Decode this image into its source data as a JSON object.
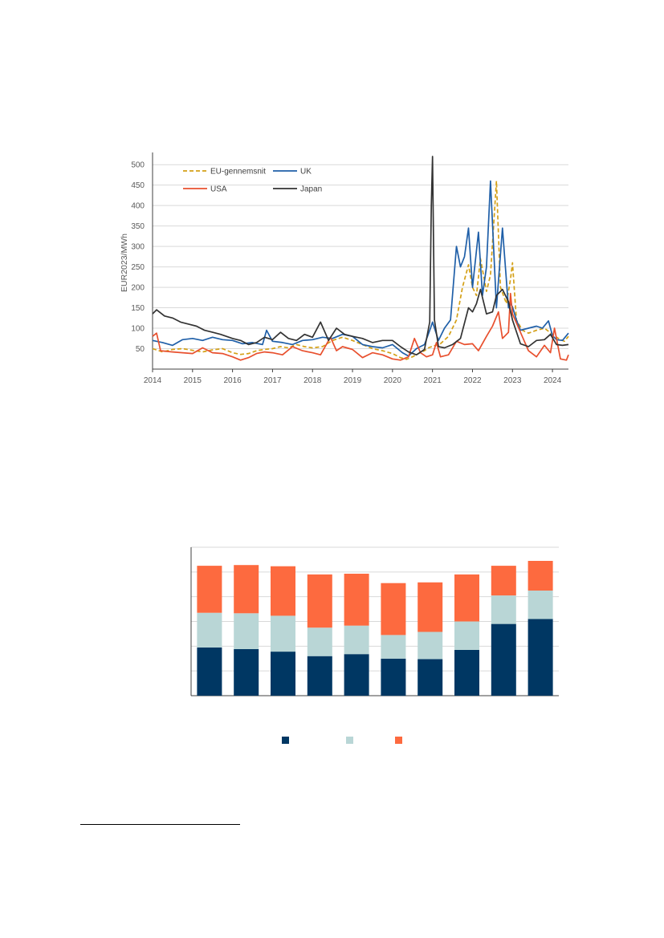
{
  "chart_data": [
    {
      "type": "line",
      "ylabel": "EUR2023/MWh",
      "xlabel": "",
      "title": "",
      "xlim": [
        2014.0,
        2024.4
      ],
      "ylim": [
        0,
        520
      ],
      "yticks": [
        50,
        100,
        150,
        200,
        250,
        300,
        350,
        400,
        450,
        500
      ],
      "xtick_labels": [
        "2014",
        "2015",
        "2016",
        "2017",
        "2018",
        "2019",
        "2020",
        "2021",
        "2022",
        "2023",
        "2024"
      ],
      "grid": true,
      "legend": "top-left",
      "series": [
        {
          "name": "EU-gennemsnit",
          "color": "#d4a017",
          "dash": true,
          "x": [
            2014.0,
            2014.25,
            2014.5,
            2014.75,
            2015.0,
            2015.25,
            2015.5,
            2015.75,
            2016.0,
            2016.2,
            2016.4,
            2016.6,
            2016.8,
            2017.0,
            2017.2,
            2017.4,
            2017.6,
            2017.8,
            2018.0,
            2018.25,
            2018.5,
            2018.75,
            2019.0,
            2019.25,
            2019.5,
            2019.75,
            2020.0,
            2020.2,
            2020.35,
            2020.5,
            2020.65,
            2020.8,
            2020.9,
            2021.0,
            2021.2,
            2021.4,
            2021.6,
            2021.75,
            2021.9,
            2022.0,
            2022.1,
            2022.2,
            2022.35,
            2022.45,
            2022.6,
            2022.7,
            2022.85,
            2022.95,
            2023.0,
            2023.1,
            2023.25,
            2023.4,
            2023.6,
            2023.8,
            2024.0,
            2024.15,
            2024.3,
            2024.4
          ],
          "values": [
            50,
            42,
            48,
            50,
            46,
            42,
            47,
            50,
            40,
            36,
            38,
            45,
            48,
            50,
            55,
            52,
            60,
            55,
            52,
            55,
            70,
            78,
            70,
            60,
            50,
            45,
            38,
            28,
            24,
            30,
            38,
            45,
            52,
            56,
            62,
            80,
            120,
            200,
            255,
            200,
            180,
            270,
            190,
            230,
            460,
            200,
            160,
            220,
            260,
            120,
            95,
            88,
            95,
            100,
            85,
            75,
            68,
            80
          ]
        },
        {
          "name": "UK",
          "color": "#1f5fa8",
          "dash": false,
          "x": [
            2014.0,
            2014.25,
            2014.5,
            2014.75,
            2015.0,
            2015.25,
            2015.5,
            2015.75,
            2016.0,
            2016.25,
            2016.5,
            2016.75,
            2016.85,
            2017.0,
            2017.25,
            2017.5,
            2017.75,
            2018.0,
            2018.25,
            2018.5,
            2018.75,
            2019.0,
            2019.25,
            2019.5,
            2019.75,
            2020.0,
            2020.25,
            2020.4,
            2020.6,
            2020.8,
            2020.95,
            2021.0,
            2021.15,
            2021.3,
            2021.45,
            2021.6,
            2021.7,
            2021.8,
            2021.9,
            2022.0,
            2022.15,
            2022.25,
            2022.35,
            2022.45,
            2022.6,
            2022.75,
            2022.9,
            2022.95,
            2023.0,
            2023.1,
            2023.2,
            2023.4,
            2023.6,
            2023.75,
            2023.9,
            2024.0,
            2024.1,
            2024.25,
            2024.4
          ],
          "values": [
            70,
            65,
            58,
            72,
            75,
            70,
            78,
            72,
            70,
            62,
            65,
            60,
            95,
            68,
            65,
            60,
            70,
            72,
            78,
            75,
            85,
            80,
            60,
            55,
            52,
            60,
            40,
            32,
            50,
            60,
            100,
            115,
            70,
            100,
            120,
            300,
            250,
            275,
            345,
            200,
            335,
            180,
            250,
            460,
            150,
            345,
            150,
            160,
            152,
            120,
            95,
            100,
            105,
            100,
            118,
            82,
            72,
            70,
            88
          ]
        },
        {
          "name": "USA",
          "color": "#e8502e",
          "dash": false,
          "x": [
            2014.0,
            2014.1,
            2014.2,
            2014.5,
            2014.75,
            2015.0,
            2015.25,
            2015.5,
            2015.75,
            2016.0,
            2016.2,
            2016.4,
            2016.6,
            2016.8,
            2017.0,
            2017.25,
            2017.5,
            2017.75,
            2018.0,
            2018.2,
            2018.45,
            2018.6,
            2018.75,
            2019.0,
            2019.25,
            2019.5,
            2019.75,
            2020.0,
            2020.2,
            2020.4,
            2020.55,
            2020.7,
            2020.85,
            2021.0,
            2021.1,
            2021.2,
            2021.4,
            2021.6,
            2021.8,
            2022.0,
            2022.15,
            2022.35,
            2022.5,
            2022.65,
            2022.75,
            2022.9,
            2022.95,
            2023.0,
            2023.2,
            2023.4,
            2023.6,
            2023.8,
            2023.95,
            2024.05,
            2024.2,
            2024.35,
            2024.4
          ],
          "values": [
            80,
            88,
            45,
            42,
            40,
            38,
            52,
            40,
            38,
            30,
            22,
            28,
            38,
            42,
            40,
            35,
            55,
            45,
            40,
            35,
            78,
            45,
            55,
            48,
            28,
            40,
            35,
            25,
            22,
            30,
            75,
            40,
            30,
            35,
            65,
            30,
            35,
            68,
            60,
            62,
            45,
            80,
            105,
            140,
            75,
            90,
            185,
            135,
            90,
            45,
            30,
            58,
            40,
            100,
            25,
            22,
            35
          ]
        },
        {
          "name": "Japan",
          "color": "#333333",
          "dash": false,
          "x": [
            2014.0,
            2014.1,
            2014.3,
            2014.5,
            2014.7,
            2014.9,
            2015.1,
            2015.3,
            2015.5,
            2015.7,
            2016.0,
            2016.2,
            2016.4,
            2016.6,
            2016.8,
            2017.0,
            2017.2,
            2017.4,
            2017.6,
            2017.8,
            2018.0,
            2018.2,
            2018.4,
            2018.6,
            2018.8,
            2019.0,
            2019.25,
            2019.5,
            2019.75,
            2020.0,
            2020.2,
            2020.4,
            2020.6,
            2020.8,
            2020.93,
            2020.97,
            2021.0,
            2021.05,
            2021.15,
            2021.3,
            2021.5,
            2021.7,
            2021.9,
            2022.0,
            2022.1,
            2022.2,
            2022.35,
            2022.5,
            2022.6,
            2022.75,
            2022.9,
            2023.0,
            2023.2,
            2023.4,
            2023.6,
            2023.8,
            2023.95,
            2024.1,
            2024.25,
            2024.4
          ],
          "values": [
            135,
            145,
            130,
            125,
            115,
            110,
            105,
            95,
            90,
            85,
            75,
            70,
            60,
            65,
            78,
            72,
            90,
            75,
            70,
            85,
            78,
            115,
            70,
            100,
            85,
            80,
            75,
            65,
            70,
            70,
            55,
            42,
            35,
            48,
            115,
            400,
            520,
            120,
            55,
            52,
            60,
            75,
            150,
            140,
            160,
            195,
            135,
            140,
            180,
            195,
            165,
            120,
            62,
            55,
            70,
            72,
            85,
            60,
            58,
            60
          ]
        }
      ]
    },
    {
      "type": "bar",
      "stacked": true,
      "title": "",
      "xlabel": "",
      "ylabel": "",
      "ylim": [
        0,
        60
      ],
      "categories": [
        "",
        "",
        "",
        "",
        "",
        "",
        "",
        "",
        "",
        ""
      ],
      "grid": true,
      "legend": "bottom",
      "series": [
        {
          "name": "",
          "color": "#003763",
          "values": [
            19.5,
            18.8,
            17.8,
            16.0,
            16.8,
            15.0,
            14.8,
            18.5,
            29.0,
            31.0
          ]
        },
        {
          "name": "",
          "color": "#b9d6d6",
          "values": [
            14.0,
            14.5,
            14.5,
            11.5,
            11.5,
            9.5,
            11.0,
            11.5,
            11.5,
            11.5
          ]
        },
        {
          "name": "",
          "color": "#fd6a3f",
          "values": [
            19.0,
            19.5,
            20.0,
            21.5,
            21.0,
            21.0,
            20.0,
            19.0,
            12.0,
            12.0
          ]
        }
      ]
    }
  ]
}
